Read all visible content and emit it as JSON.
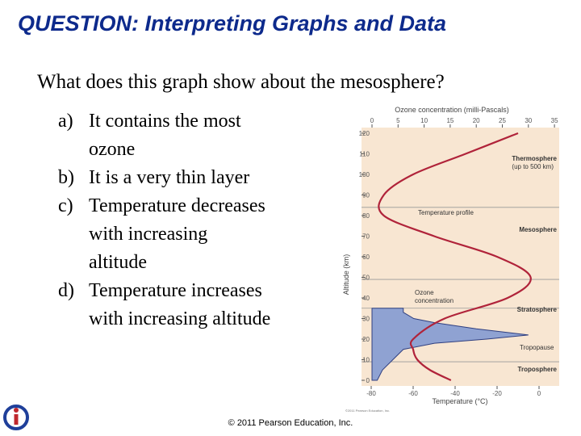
{
  "title": "QUESTION: Interpreting Graphs and Data",
  "question": "What does this graph show about the mesosphere?",
  "options": [
    {
      "letter": "a)",
      "lines": [
        "It contains the most",
        "ozone"
      ]
    },
    {
      "letter": "b)",
      "lines": [
        "It is a very thin layer"
      ]
    },
    {
      "letter": "c)",
      "lines": [
        "Temperature decreases",
        "with increasing",
        "altitude"
      ]
    },
    {
      "letter": "d)",
      "lines": [
        "Temperature increases",
        "with increasing altitude"
      ]
    }
  ],
  "footer": "© 2011 Pearson Education, Inc.",
  "figure": {
    "ozone_axis_title": "Ozone concentration (milli-Pascals)",
    "altitude_axis_title": "Altitude (km)",
    "temperature_axis_title": "Temperature (°C)",
    "credit": "©2011 Pearson Education, Inc.",
    "altitude_ticks": [
      0,
      10,
      20,
      30,
      40,
      50,
      60,
      70,
      80,
      90,
      100,
      110,
      120
    ],
    "temperature_ticks": [
      -80,
      -60,
      -40,
      -20,
      0
    ],
    "ozone_ticks": [
      0,
      5,
      10,
      15,
      20,
      25,
      30,
      35
    ],
    "layer_boundaries": [
      9,
      35,
      49,
      84
    ],
    "labels": {
      "thermosphere": "Thermosphere",
      "thermosphere_note": "(up to 500 km)",
      "mesosphere": "Mesosphere",
      "stratosphere": "Stratosphere",
      "troposphere": "Troposphere",
      "tropopause": "Tropopause",
      "temperature_profile": "Temperature profile",
      "ozone_1": "Ozone",
      "ozone_2": "concentration"
    },
    "temperature_profile": {
      "color": "#b0233a",
      "altitude": [
        0,
        5,
        10,
        15,
        20,
        30,
        40,
        50,
        60,
        70,
        80,
        90,
        100,
        110,
        120
      ],
      "temperature": [
        -42,
        -52,
        -58,
        -60,
        -60,
        -45,
        -15,
        -4,
        -20,
        -50,
        -74,
        -74,
        -60,
        -35,
        -10
      ]
    },
    "ozone": {
      "color": "#8fa2d2",
      "altitude": [
        0,
        5,
        10,
        15,
        18,
        20,
        22,
        25,
        28,
        30,
        33,
        35
      ],
      "concentration": [
        1,
        2,
        4,
        6,
        12,
        22,
        30,
        20,
        12,
        8,
        6,
        6
      ]
    }
  }
}
